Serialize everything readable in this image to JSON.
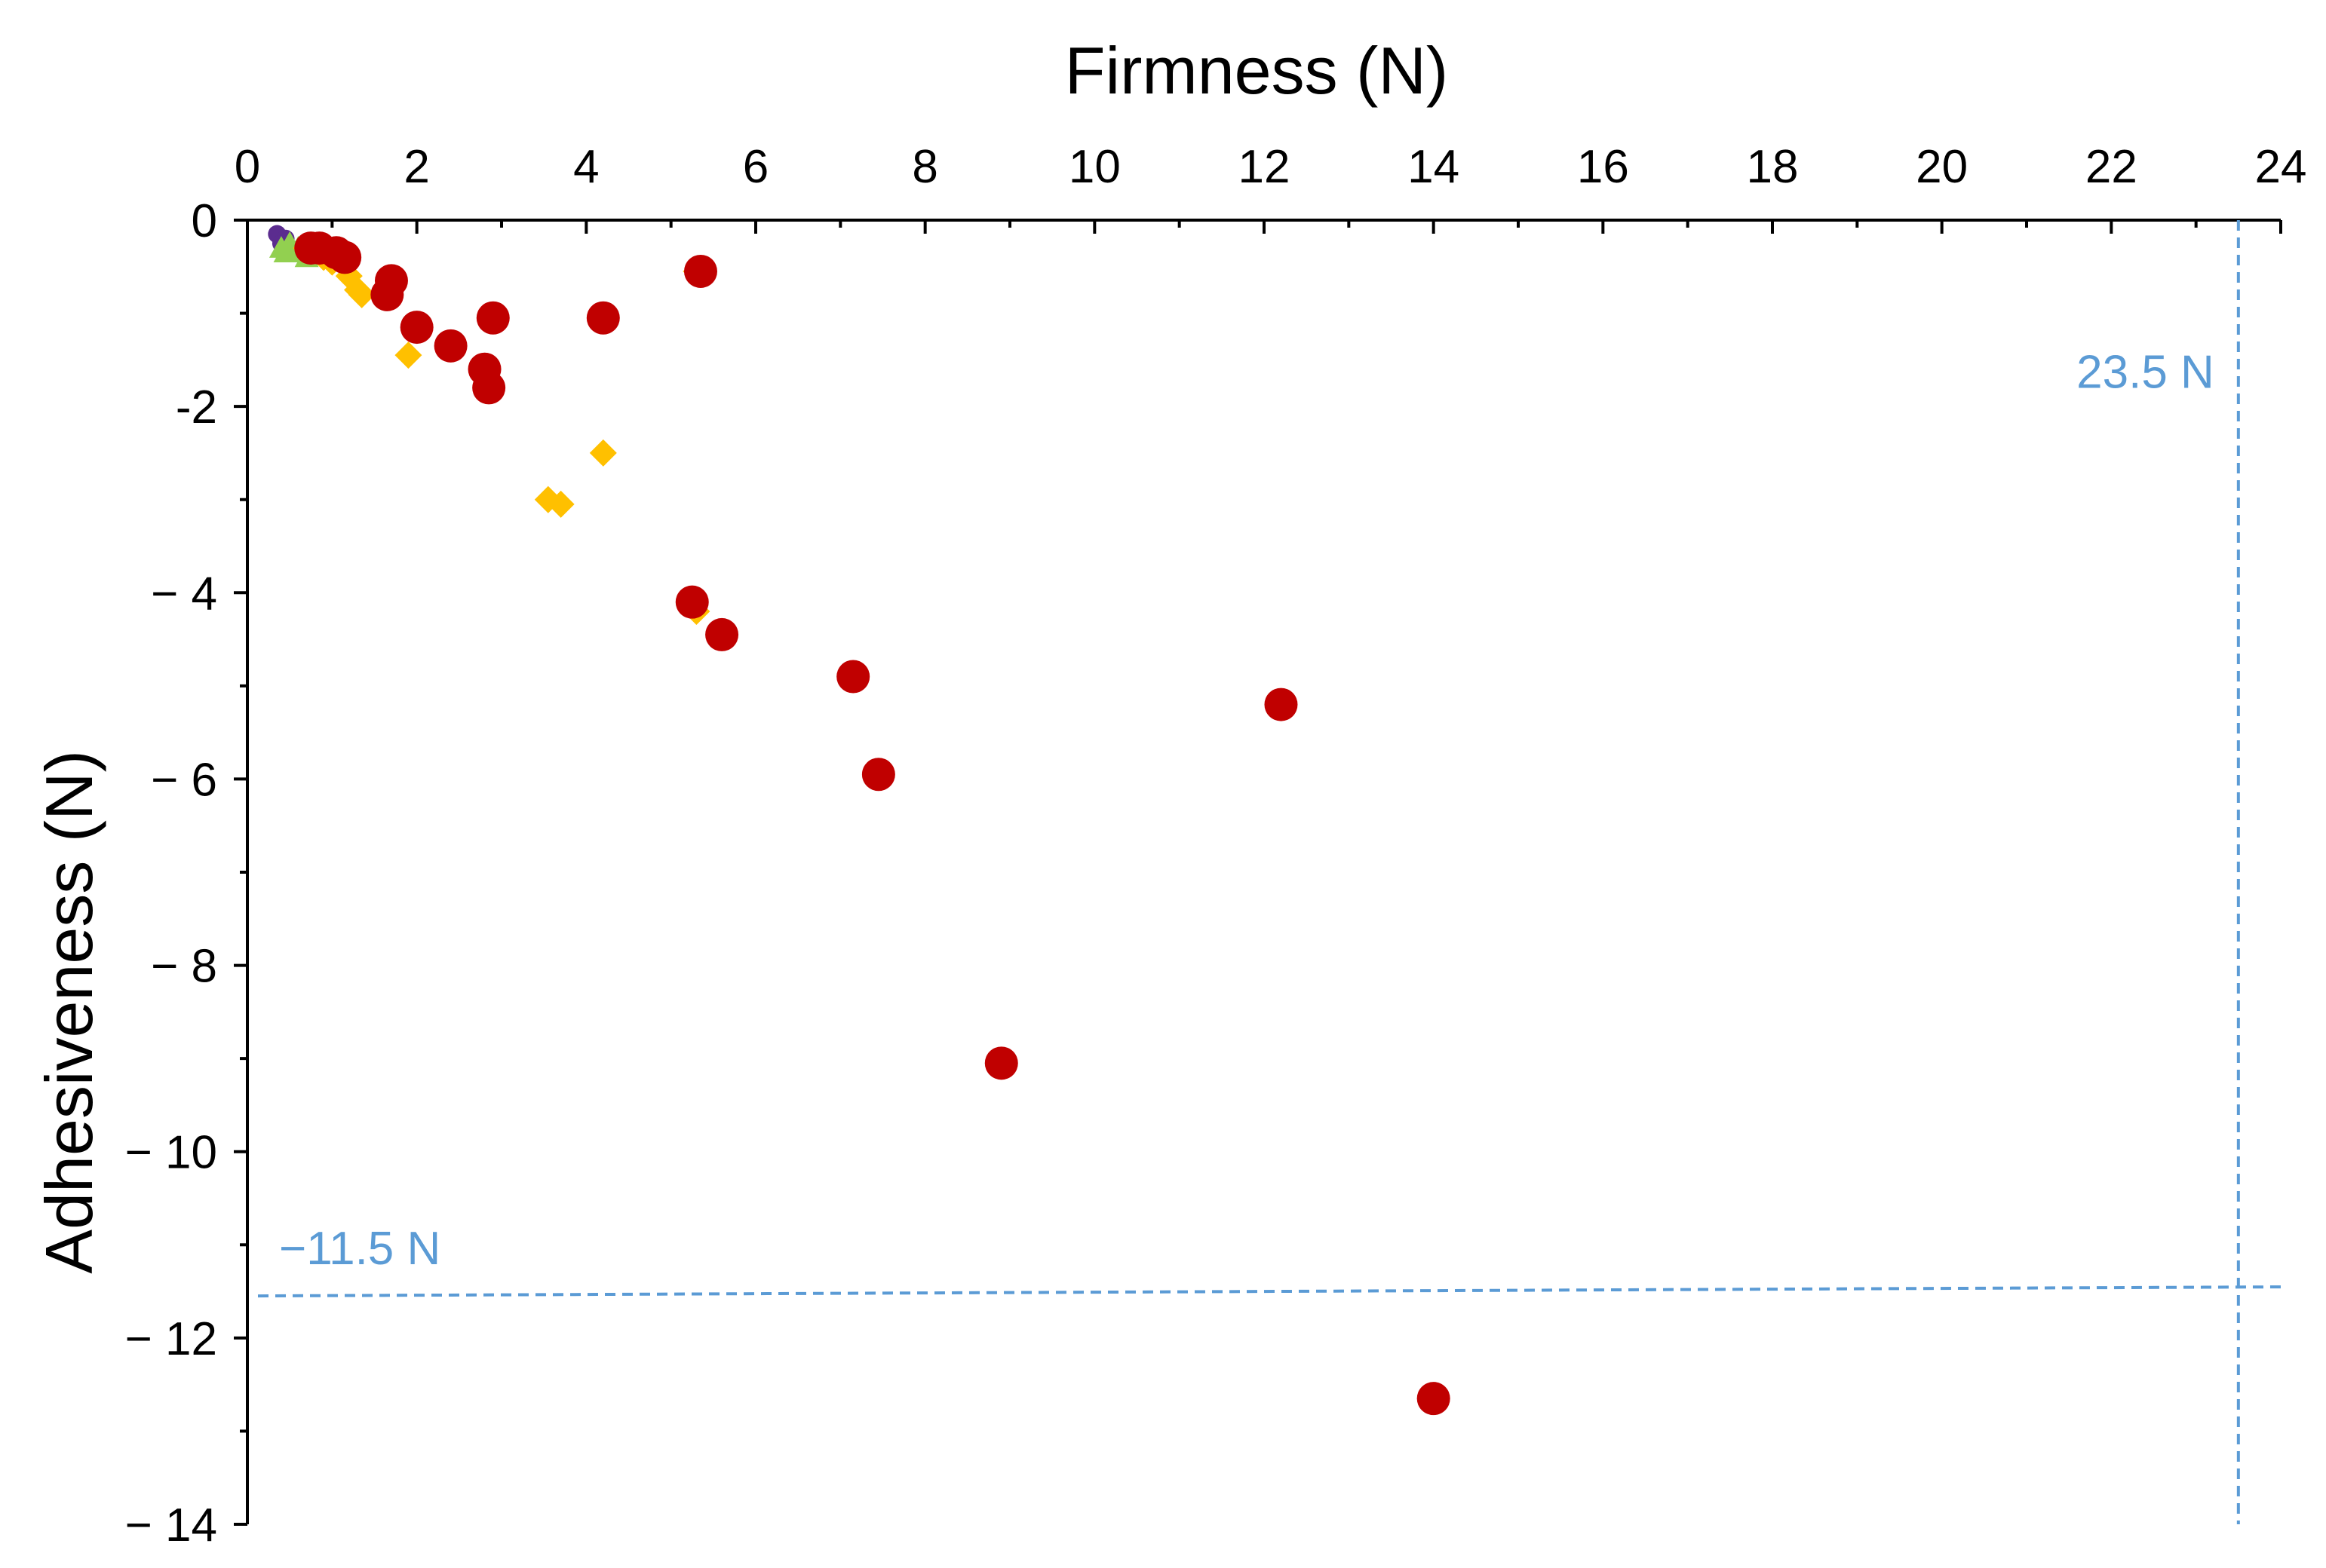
{
  "chart_data": {
    "type": "scatter",
    "xlabel": "Firmness (N)",
    "ylabel": "Adhesiveness (N)",
    "xlim": [
      0,
      24
    ],
    "ylim": [
      -14,
      0
    ],
    "x_axis_position": "top",
    "y_axis_position": "left",
    "x_ticks": [
      "0",
      "2",
      "4",
      "6",
      "8",
      "10",
      "12",
      "14",
      "16",
      "18",
      "20",
      "22",
      "24"
    ],
    "y_ticks": [
      "0",
      "-2",
      "− 4",
      "− 6",
      "− 8",
      "− 10",
      "− 12",
      "− 14"
    ],
    "grid": false,
    "legend": "none",
    "reference_lines": [
      {
        "orientation": "vertical",
        "value": 23.5,
        "label": "23.5 N",
        "color": "#5b9bd5"
      },
      {
        "orientation": "horizontal",
        "value": -11.5,
        "label": "−11.5 N",
        "color": "#5b9bd5"
      }
    ],
    "series": [
      {
        "marker": "circle",
        "color": "#5b2c8f",
        "points": [
          [
            0.35,
            -0.15
          ],
          [
            0.4,
            -0.25
          ],
          [
            0.45,
            -0.2
          ],
          [
            0.5,
            -0.3
          ]
        ]
      },
      {
        "marker": "triangle",
        "color": "#92d050",
        "points": [
          [
            0.4,
            -0.3
          ],
          [
            0.5,
            -0.25
          ],
          [
            0.55,
            -0.35
          ],
          [
            0.6,
            -0.3
          ],
          [
            0.7,
            -0.4
          ],
          [
            0.45,
            -0.35
          ]
        ]
      },
      {
        "marker": "diamond",
        "color": "#ffc000",
        "points": [
          [
            0.7,
            -0.3
          ],
          [
            0.9,
            -0.4
          ],
          [
            1.0,
            -0.45
          ],
          [
            1.2,
            -0.6
          ],
          [
            1.3,
            -0.75
          ],
          [
            1.35,
            -0.8
          ],
          [
            1.9,
            -1.45
          ],
          [
            3.55,
            -3.0
          ],
          [
            3.7,
            -3.05
          ],
          [
            4.2,
            -2.5
          ],
          [
            5.3,
            -4.2
          ],
          [
            5.3,
            -0.55
          ]
        ]
      },
      {
        "marker": "circle",
        "color": "#c00000",
        "points": [
          [
            0.75,
            -0.3
          ],
          [
            0.85,
            -0.3
          ],
          [
            1.05,
            -0.35
          ],
          [
            1.15,
            -0.4
          ],
          [
            1.65,
            -0.8
          ],
          [
            1.7,
            -0.65
          ],
          [
            2.0,
            -1.15
          ],
          [
            2.4,
            -1.35
          ],
          [
            2.8,
            -1.6
          ],
          [
            2.85,
            -1.8
          ],
          [
            2.9,
            -1.05
          ],
          [
            4.2,
            -1.05
          ],
          [
            5.35,
            -0.55
          ],
          [
            5.25,
            -4.1
          ],
          [
            5.6,
            -4.45
          ],
          [
            7.15,
            -4.9
          ],
          [
            7.45,
            -5.95
          ],
          [
            8.9,
            -9.05
          ],
          [
            12.2,
            -5.2
          ],
          [
            14.0,
            -12.65
          ]
        ]
      }
    ]
  }
}
